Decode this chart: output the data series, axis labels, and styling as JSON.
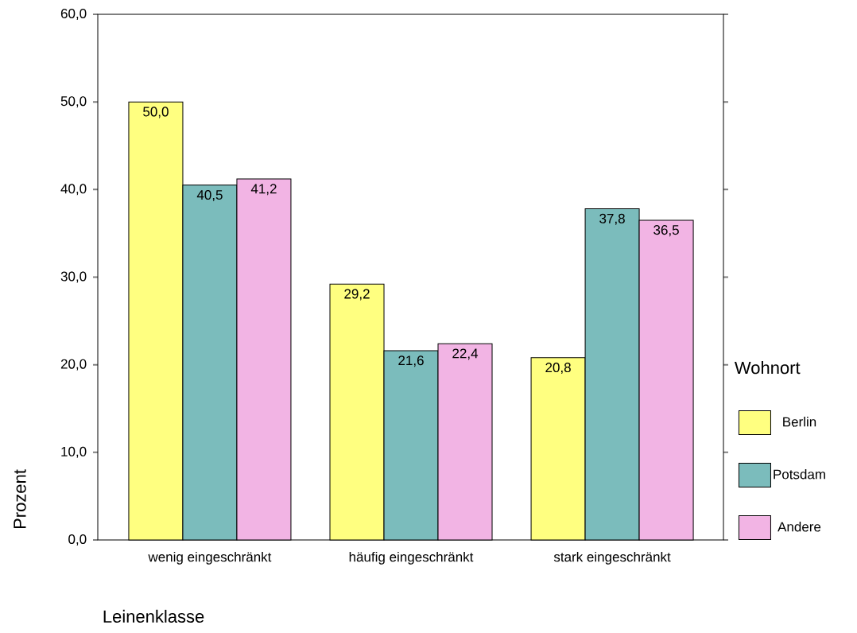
{
  "chart_data": {
    "type": "bar",
    "categories": [
      "wenig eingeschränkt",
      "häufig eingeschränkt",
      "stark eingeschränkt"
    ],
    "series": [
      {
        "name": "Berlin",
        "color": "#ffff80",
        "values": [
          50.0,
          29.2,
          20.8
        ],
        "value_labels": [
          "50,0",
          "29,2",
          "20,8"
        ]
      },
      {
        "name": "Potsdam",
        "color": "#7bbcbc",
        "values": [
          40.5,
          21.6,
          37.8
        ],
        "value_labels": [
          "40,5",
          "21,6",
          "37,8"
        ]
      },
      {
        "name": "Andere",
        "color": "#f2b4e4",
        "values": [
          41.2,
          22.4,
          36.5
        ],
        "value_labels": [
          "41,2",
          "22,4",
          "36,5"
        ]
      }
    ],
    "xlabel": "Leinenklasse",
    "ylabel": "Prozent",
    "legend_title": "Wohnort",
    "legend": "right",
    "ylim": [
      0,
      60
    ],
    "yticks": [
      {
        "value": 0,
        "label": "0,0"
      },
      {
        "value": 10,
        "label": "10,0"
      },
      {
        "value": 20,
        "label": "20,0"
      },
      {
        "value": 30,
        "label": "30,0"
      },
      {
        "value": 40,
        "label": "40,0"
      },
      {
        "value": 50,
        "label": "50,0"
      },
      {
        "value": 60,
        "label": "60,0"
      }
    ]
  }
}
